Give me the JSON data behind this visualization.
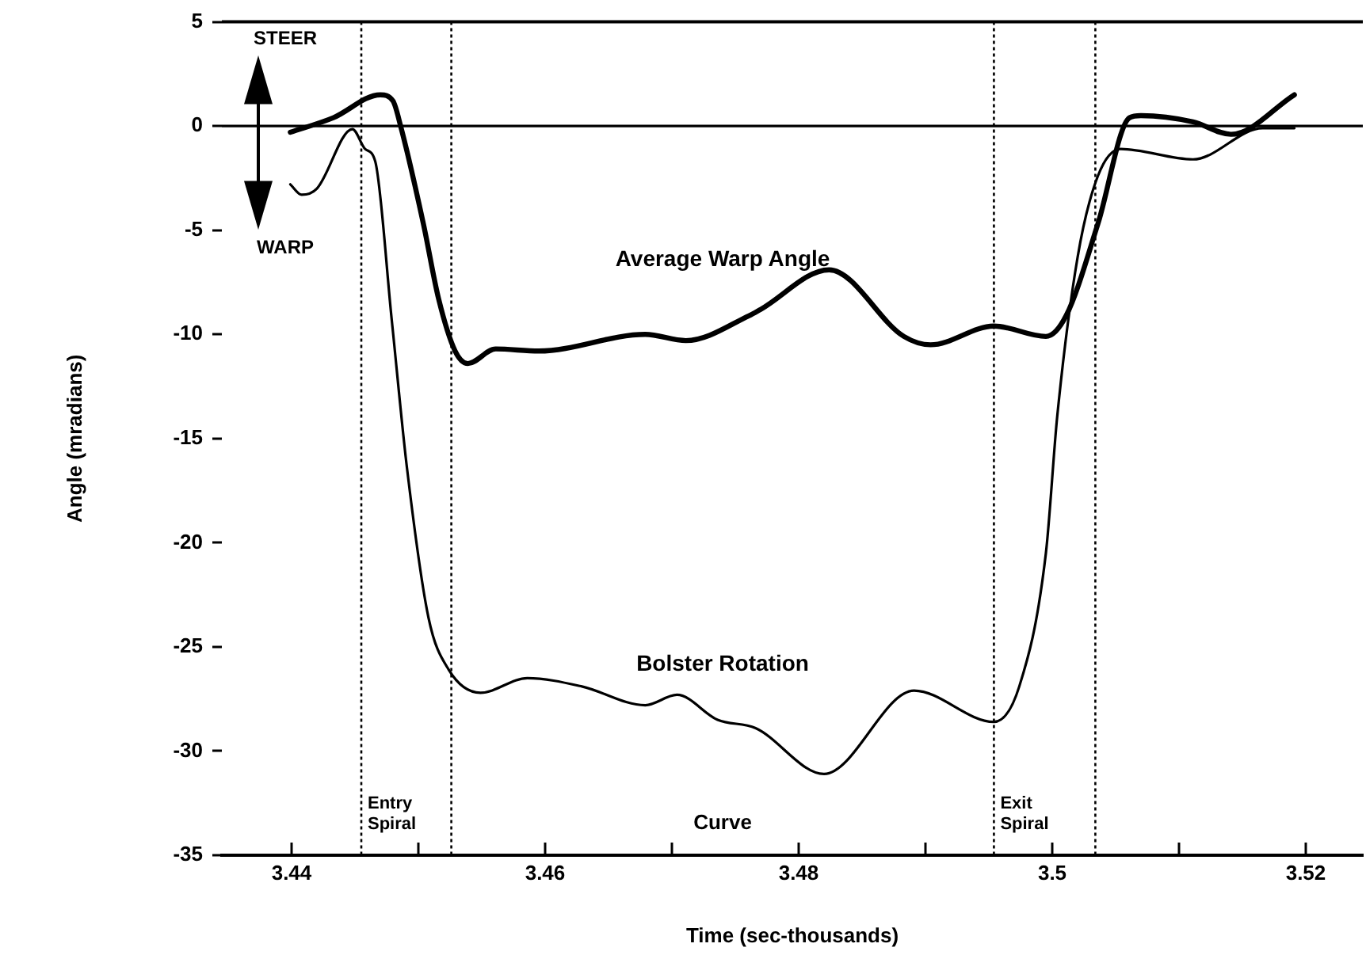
{
  "chart_data": {
    "type": "line",
    "xlabel": "Time (sec-thousands)",
    "ylabel": "Angle (mradians)",
    "xlim": [
      3.4345,
      3.5245
    ],
    "ylim": [
      -35,
      5
    ],
    "xticks": [
      3.44,
      {
        "value": 3.45,
        "label": null
      },
      3.46,
      {
        "value": 3.47,
        "label": null
      },
      3.48,
      {
        "value": 3.49,
        "label": null
      },
      3.5,
      {
        "value": 3.51,
        "label": null
      },
      3.52
    ],
    "yticks": [
      -35,
      -30,
      -25,
      -20,
      -15,
      -10,
      -5,
      0,
      5
    ],
    "grid": false,
    "legend": false,
    "marker": "none",
    "series": [
      {
        "name": "Average Warp Angle",
        "color": "#000000",
        "x": [
          3.4399,
          3.4433,
          3.447,
          3.448,
          3.4486,
          3.4504,
          3.4516,
          3.4529,
          3.4539,
          3.4561,
          3.4595,
          3.4679,
          3.4711,
          3.4761,
          3.477,
          3.4824,
          3.4883,
          3.4904,
          3.4954,
          3.4995,
          3.5011,
          3.5036,
          3.5061,
          3.507,
          3.5111,
          3.5141,
          3.5191
        ],
        "values": [
          -0.3,
          0.4,
          1.5,
          1.2,
          0,
          -4.7,
          -8.3,
          -10.8,
          -11.4,
          -10.7,
          -10.8,
          -10,
          -10.3,
          -9.1,
          -8.8,
          -6.9,
          -10.1,
          -10.5,
          -9.6,
          -10.1,
          -9.1,
          -4.7,
          0.4,
          0.5,
          0.2,
          -0.4,
          1.5
        ]
      },
      {
        "name": "Bolster Rotation",
        "color": "#000000",
        "x": [
          3.4399,
          3.4408,
          3.442,
          3.4448,
          3.4458,
          3.4466,
          3.4479,
          3.4491,
          3.4508,
          3.4524,
          3.4549,
          3.4586,
          3.4629,
          3.4679,
          3.4704,
          3.4736,
          3.4766,
          3.482,
          3.4891,
          3.4954,
          3.4974,
          3.4995,
          3.5004,
          3.502,
          3.5036,
          3.5054,
          3.5111,
          3.5166,
          3.5191
        ],
        "values": [
          -2.8,
          -3.3,
          -3,
          -0.15,
          -1.1,
          -1.7,
          -9.3,
          -16.4,
          -23.6,
          -26.1,
          -27.2,
          -26.5,
          -26.9,
          -27.8,
          -27.3,
          -28.5,
          -28.9,
          -31.1,
          -27.1,
          -28.6,
          -26.9,
          -20.5,
          -13.9,
          -6.3,
          -2.4,
          -1.1,
          -1.6,
          -0.1,
          -0.1
        ]
      }
    ],
    "ref_lines": [
      {
        "axis": "y",
        "value": 0,
        "color": "#000000",
        "line_style": "solid"
      },
      {
        "axis": "x",
        "value": 3.4455,
        "color": "#000000",
        "line_style": "dotted",
        "label": "Entry Spiral"
      },
      {
        "axis": "x",
        "value": 3.4526,
        "color": "#000000",
        "line_style": "dotted"
      },
      {
        "axis": "x",
        "value": 3.4954,
        "color": "#000000",
        "line_style": "dotted",
        "label": "Exit Spiral"
      },
      {
        "axis": "x",
        "value": 3.5034,
        "color": "#000000",
        "line_style": "dotted"
      }
    ],
    "annotations": [
      "STEER",
      "WARP",
      "Curve"
    ]
  }
}
